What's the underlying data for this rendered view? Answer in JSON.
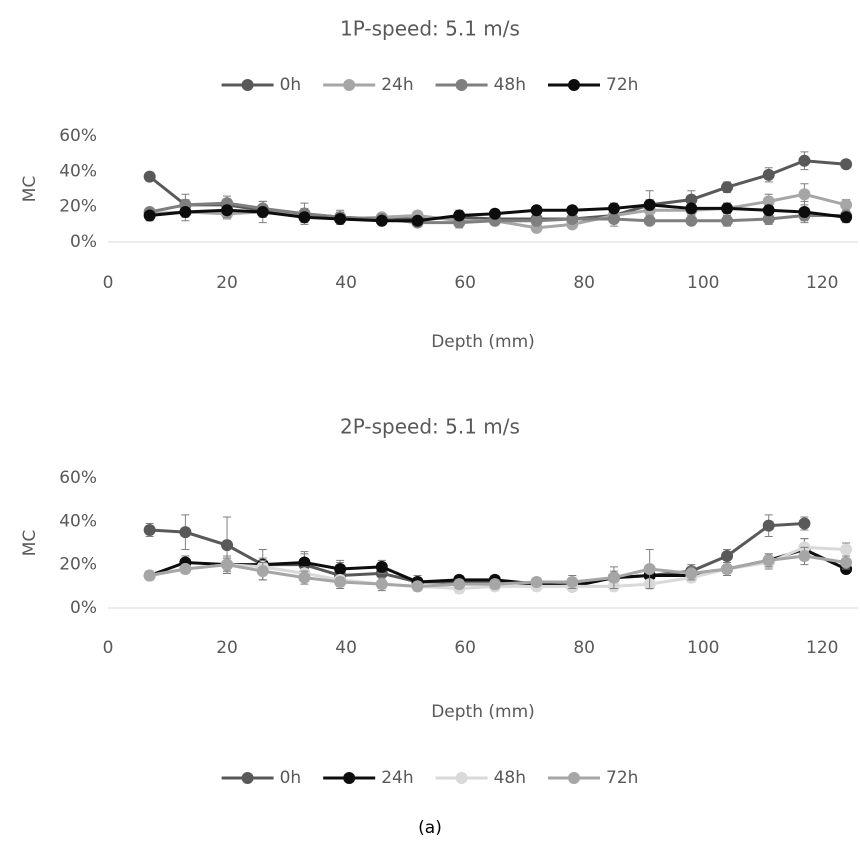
{
  "chart_data": [
    {
      "type": "line",
      "title": "1P-speed: 5.1 m/s",
      "x_label": "Depth (mm)",
      "y_label": "MC",
      "legend": "top",
      "grid": false,
      "x": [
        7,
        13,
        20,
        26,
        33,
        39,
        46,
        52,
        59,
        65,
        72,
        78,
        85,
        91,
        98,
        104,
        111,
        117,
        124
      ],
      "xlim": [
        0,
        126
      ],
      "xticks": [
        0,
        20,
        40,
        60,
        80,
        100,
        120
      ],
      "ylim": [
        0,
        60
      ],
      "yticks": [
        {
          "value": 0,
          "label": "0%"
        },
        {
          "value": 20,
          "label": "20%"
        },
        {
          "value": 40,
          "label": "40%"
        },
        {
          "value": 60,
          "label": "60%"
        }
      ],
      "series": [
        {
          "name": "0h",
          "color": "#595959",
          "values": [
            37,
            21,
            21,
            18,
            16,
            14,
            13,
            13,
            14,
            13,
            13,
            13,
            15,
            21,
            24,
            31,
            38,
            46,
            44
          ],
          "errors": [
            2,
            6,
            3,
            3,
            6,
            4,
            2,
            2,
            4,
            2,
            2,
            2,
            6,
            8,
            5,
            3,
            4,
            5,
            2
          ]
        },
        {
          "name": "24h",
          "color": "#a6a6a6",
          "values": [
            16,
            17,
            16,
            17,
            15,
            13,
            14,
            15,
            12,
            12,
            8,
            10,
            15,
            18,
            18,
            19,
            23,
            27,
            21
          ],
          "errors": [
            2,
            3,
            3,
            3,
            3,
            2,
            2,
            2,
            2,
            2,
            2,
            2,
            3,
            3,
            3,
            3,
            4,
            6,
            3
          ]
        },
        {
          "name": "48h",
          "color": "#7f7f7f",
          "values": [
            17,
            21,
            22,
            19,
            16,
            14,
            13,
            11,
            11,
            12,
            12,
            13,
            13,
            12,
            12,
            12,
            13,
            15,
            15
          ],
          "errors": [
            2,
            3,
            4,
            4,
            3,
            3,
            2,
            2,
            3,
            2,
            2,
            2,
            2,
            2,
            2,
            3,
            3,
            3,
            2
          ]
        },
        {
          "name": "72h",
          "color": "#0d0d0d",
          "values": [
            15,
            17,
            18,
            17,
            14,
            13,
            12,
            12,
            15,
            16,
            18,
            18,
            19,
            21,
            19,
            19,
            18,
            17,
            14
          ],
          "errors": [
            3,
            5,
            4,
            6,
            3,
            2,
            2,
            2,
            2,
            2,
            2,
            2,
            3,
            3,
            3,
            3,
            3,
            6,
            3
          ]
        }
      ]
    },
    {
      "type": "line",
      "title": "2P-speed: 5.1 m/s",
      "x_label": "Depth (mm)",
      "y_label": "MC",
      "legend": "bottom",
      "grid": false,
      "x": [
        7,
        13,
        20,
        26,
        33,
        39,
        46,
        52,
        59,
        65,
        72,
        78,
        85,
        91,
        98,
        104,
        111,
        117,
        124
      ],
      "xlim": [
        0,
        126
      ],
      "xticks": [
        0,
        20,
        40,
        60,
        80,
        100,
        120
      ],
      "ylim": [
        0,
        60
      ],
      "yticks": [
        {
          "value": 0,
          "label": "0%"
        },
        {
          "value": 20,
          "label": "20%"
        },
        {
          "value": 40,
          "label": "40%"
        },
        {
          "value": 60,
          "label": "60%"
        }
      ],
      "series": [
        {
          "name": "0h",
          "color": "#595959",
          "values": [
            36,
            35,
            29,
            20,
            20,
            15,
            16,
            12,
            12,
            12,
            11,
            11,
            14,
            15,
            17,
            24,
            38,
            39,
            null
          ],
          "errors": [
            3,
            8,
            13,
            7,
            5,
            6,
            5,
            3,
            3,
            3,
            2,
            2,
            3,
            3,
            3,
            3,
            5,
            3,
            null
          ]
        },
        {
          "name": "24h",
          "color": "#0d0d0d",
          "values": [
            15,
            21,
            20,
            20,
            21,
            18,
            19,
            12,
            13,
            13,
            11,
            10,
            14,
            15,
            15,
            18,
            22,
            27,
            18
          ],
          "errors": [
            2,
            3,
            3,
            3,
            5,
            4,
            3,
            2,
            2,
            2,
            2,
            2,
            2,
            2,
            2,
            2,
            3,
            5,
            2
          ]
        },
        {
          "name": "48h",
          "color": "#d9d9d9",
          "values": [
            15,
            18,
            20,
            19,
            16,
            13,
            11,
            10,
            9,
            10,
            10,
            10,
            10,
            11,
            14,
            18,
            21,
            28,
            27
          ],
          "errors": [
            2,
            2,
            3,
            3,
            3,
            2,
            2,
            2,
            2,
            2,
            2,
            2,
            2,
            2,
            2,
            2,
            3,
            4,
            3
          ]
        },
        {
          "name": "72h",
          "color": "#a6a6a6",
          "values": [
            15,
            18,
            20,
            17,
            14,
            12,
            11,
            10,
            11,
            11,
            12,
            12,
            14,
            18,
            16,
            18,
            22,
            24,
            21
          ],
          "errors": [
            2,
            2,
            4,
            4,
            3,
            2,
            3,
            2,
            2,
            2,
            2,
            3,
            5,
            9,
            3,
            3,
            3,
            4,
            3
          ]
        }
      ]
    }
  ],
  "caption": "(a)"
}
